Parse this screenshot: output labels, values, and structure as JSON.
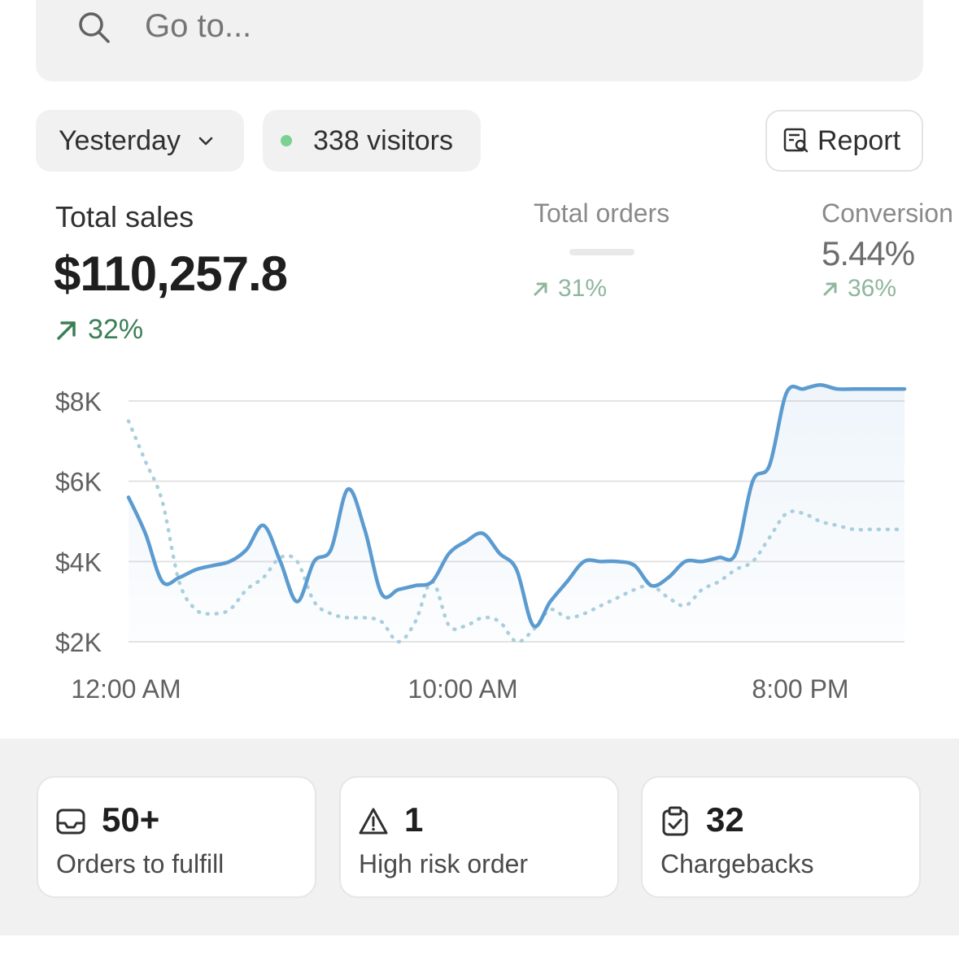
{
  "search": {
    "placeholder": "Go to..."
  },
  "filters": {
    "date_range": "Yesterday",
    "visitors": "338 visitors",
    "report_label": "Report"
  },
  "metrics": {
    "total_sales": {
      "label": "Total sales",
      "value": "$110,257.8",
      "change": "32%"
    },
    "total_orders": {
      "label": "Total orders",
      "value": "",
      "change": "31%"
    },
    "conversion": {
      "label": "Conversion",
      "value": "5.44%",
      "change": "36%"
    }
  },
  "colors": {
    "current_series": "#5b9bd0",
    "comparison_series": "#a9cfdf",
    "trend_positive": "#3b7f56",
    "live_dot": "#7bd18f"
  },
  "chart_data": {
    "type": "line",
    "y_ticks": [
      "$8K",
      "$6K",
      "$4K",
      "$2K"
    ],
    "x_ticks": [
      "12:00 AM",
      "10:00 AM",
      "8:00 PM"
    ],
    "ylim": [
      2000,
      8000
    ],
    "grid": true,
    "series": [
      {
        "style": "solid",
        "x": [
          0,
          0.5,
          1,
          1.5,
          2,
          2.5,
          3,
          3.5,
          4,
          4.5,
          5,
          5.5,
          6,
          6.5,
          7,
          7.5,
          8,
          8.5,
          9,
          9.5,
          10,
          10.5,
          11,
          11.5,
          12,
          12.5,
          13,
          13.5,
          14,
          14.5,
          15,
          15.5,
          16,
          16.5,
          17,
          17.5,
          18,
          18.5,
          19,
          19.5,
          20,
          20.5,
          21,
          21.5,
          22,
          22.5,
          23
        ],
        "values": [
          5600,
          4700,
          3500,
          3600,
          3800,
          3900,
          4000,
          4300,
          4900,
          4000,
          3000,
          4000,
          4300,
          5800,
          4800,
          3200,
          3300,
          3400,
          3500,
          4200,
          4500,
          4700,
          4200,
          3800,
          2400,
          3000,
          3500,
          4000,
          4000,
          4000,
          3900,
          3400,
          3600,
          4000,
          4000,
          4100,
          4200,
          6000,
          6400,
          8200,
          8300,
          8400,
          8300,
          8300,
          8300,
          8300,
          8300
        ]
      },
      {
        "style": "dotted",
        "x": [
          0,
          0.5,
          1,
          1.5,
          2,
          2.5,
          3,
          3.5,
          4,
          4.5,
          5,
          5.5,
          6,
          6.5,
          7,
          7.5,
          8,
          8.5,
          9,
          9.5,
          10,
          10.5,
          11,
          11.5,
          12,
          12.5,
          13,
          13.5,
          14,
          14.5,
          15,
          15.5,
          16,
          16.5,
          17,
          17.5,
          18,
          18.5,
          19,
          19.5,
          20,
          20.5,
          21,
          21.5,
          22,
          22.5,
          23
        ],
        "values": [
          7500,
          6500,
          5500,
          3500,
          2800,
          2700,
          2800,
          3300,
          3600,
          4100,
          4000,
          3000,
          2700,
          2600,
          2600,
          2500,
          2000,
          2500,
          3500,
          2400,
          2400,
          2600,
          2500,
          2000,
          2300,
          2800,
          2600,
          2700,
          2900,
          3100,
          3300,
          3400,
          3100,
          2900,
          3300,
          3500,
          3800,
          4000,
          4600,
          5200,
          5200,
          5000,
          4900,
          4800,
          4800,
          4800,
          4800
        ]
      }
    ]
  },
  "tasks": [
    {
      "icon": "inbox-icon",
      "value": "50+",
      "label": "Orders to fulfill"
    },
    {
      "icon": "warning-icon",
      "value": "1",
      "label": "High risk order"
    },
    {
      "icon": "clipboard-check-icon",
      "value": "32",
      "label": "Chargebacks"
    }
  ]
}
